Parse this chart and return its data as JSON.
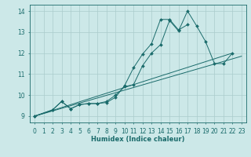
{
  "xlabel": "Humidex (Indice chaleur)",
  "ylabel": "",
  "xlim": [
    -0.5,
    23.5
  ],
  "ylim": [
    8.7,
    14.3
  ],
  "bg_color": "#cce8e8",
  "grid_color": "#aacccc",
  "line_color": "#1a6b6b",
  "series_marked": [
    {
      "x": [
        0,
        2,
        3,
        4,
        5,
        6,
        7,
        8,
        9,
        10,
        11,
        12,
        13,
        14,
        15,
        16,
        17,
        18,
        19,
        20,
        21,
        22
      ],
      "y": [
        9.0,
        9.3,
        9.7,
        9.35,
        9.55,
        9.6,
        9.6,
        9.7,
        10.0,
        10.4,
        10.5,
        11.4,
        12.0,
        12.4,
        13.55,
        13.05,
        14.0,
        13.3,
        12.55,
        11.5,
        11.5,
        12.0
      ]
    },
    {
      "x": [
        0,
        2,
        3,
        4,
        5,
        6,
        7,
        8,
        9,
        10,
        11,
        12,
        13,
        14,
        15,
        16,
        17
      ],
      "y": [
        9.0,
        9.3,
        9.7,
        9.35,
        9.55,
        9.6,
        9.6,
        9.65,
        9.9,
        10.45,
        11.3,
        11.95,
        12.45,
        13.6,
        13.6,
        13.1,
        13.35
      ]
    }
  ],
  "series_line": [
    {
      "x": [
        0,
        22
      ],
      "y": [
        9.0,
        12.0
      ]
    },
    {
      "x": [
        0,
        23
      ],
      "y": [
        9.0,
        11.85
      ]
    }
  ]
}
